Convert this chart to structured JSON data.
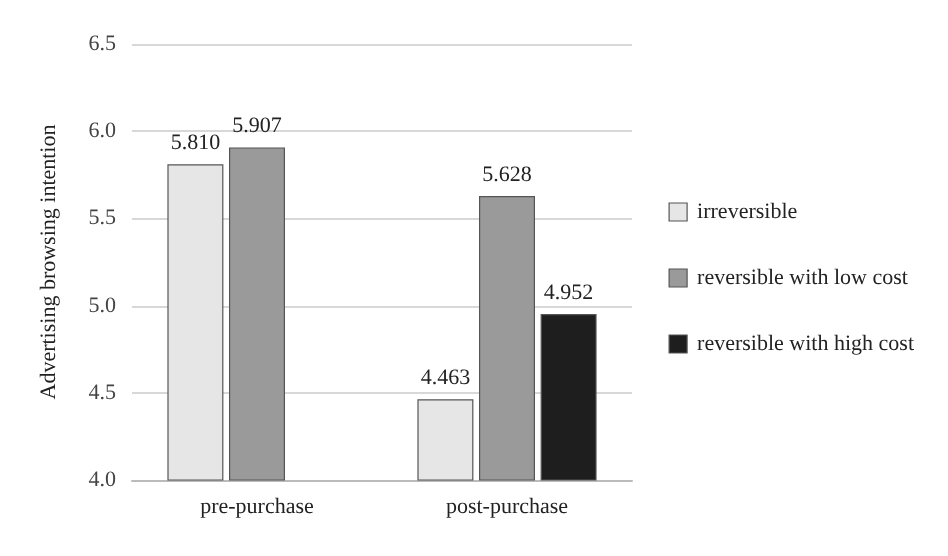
{
  "chart_data": {
    "type": "bar",
    "ylabel": "Advertising browsing intention",
    "categories": [
      "pre-purchase",
      "post-purchase"
    ],
    "series": [
      {
        "name": "irreversible",
        "color": "#e6e6e6",
        "values": [
          5.81,
          4.463
        ],
        "value_labels": [
          "5.810",
          "4.463"
        ]
      },
      {
        "name": "reversible with low cost",
        "color": "#9a9a9a",
        "values": [
          5.907,
          5.628
        ],
        "value_labels": [
          "5.907",
          "5.628"
        ]
      },
      {
        "name": "reversible with high cost",
        "color": "#1e1e1e",
        "values": [
          null,
          4.952
        ],
        "value_labels": [
          null,
          "4.952"
        ]
      }
    ],
    "ylim": [
      4.0,
      6.5
    ],
    "yticks": [
      {
        "value": 4.0,
        "label": "4.0"
      },
      {
        "value": 4.5,
        "label": "4.5"
      },
      {
        "value": 5.0,
        "label": "5.0"
      },
      {
        "value": 5.5,
        "label": "5.5"
      },
      {
        "value": 6.0,
        "label": "6.0"
      },
      {
        "value": 6.5,
        "label": "6.5"
      }
    ],
    "grid": "y",
    "legend": "right"
  }
}
